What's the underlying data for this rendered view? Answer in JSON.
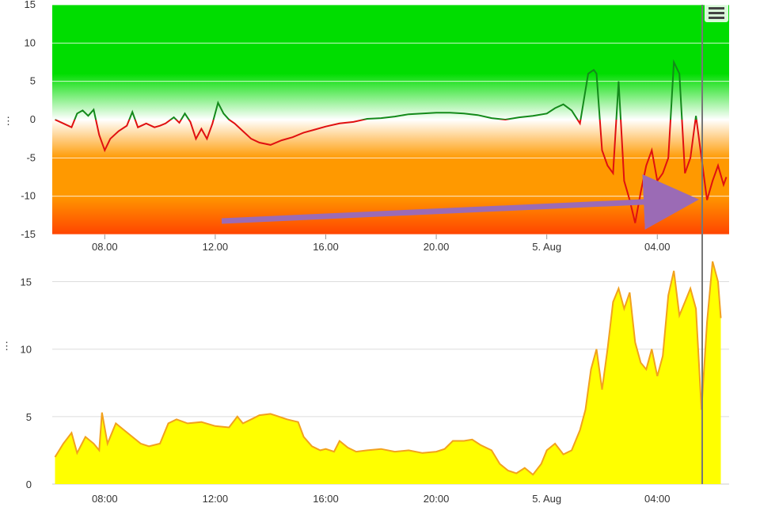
{
  "colors": {
    "zone_green": "#00dd00",
    "zone_orange": "#ff9900",
    "zone_deep_orange": "#ff4400",
    "line_positive": "#138a1a",
    "line_negative": "#e01010",
    "area_fill": "#ffff00",
    "area_stroke": "#f2a11d",
    "arrow": "#9b6bb5",
    "crosshair": "#777777"
  },
  "icons": {
    "menu": "hamburger-menu-icon"
  },
  "chart_data": [
    {
      "type": "line",
      "x_tick_labels": [
        "08.00",
        "12.00",
        "16.00",
        "20.00",
        "5. Aug",
        "04.00"
      ],
      "y_tick_labels": [
        "15",
        "10",
        "5",
        "0",
        "-5",
        "-10",
        "-15"
      ],
      "ylim": [
        -15,
        15
      ],
      "xlim_hours": [
        6.1,
        30.6
      ],
      "grid": true,
      "background_zones": "green above 0, white at 0, orange to red below 0",
      "series": [
        {
          "points": [
            [
              6.2,
              0
            ],
            [
              6.5,
              -0.5
            ],
            [
              6.8,
              -1
            ],
            [
              7,
              0.8
            ],
            [
              7.2,
              1.2
            ],
            [
              7.4,
              0.5
            ],
            [
              7.6,
              1.3
            ],
            [
              7.8,
              -2
            ],
            [
              8,
              -4
            ],
            [
              8.2,
              -2.5
            ],
            [
              8.5,
              -1.5
            ],
            [
              8.8,
              -0.8
            ],
            [
              9,
              1
            ],
            [
              9.2,
              -1
            ],
            [
              9.5,
              -0.5
            ],
            [
              9.8,
              -1
            ],
            [
              10,
              -0.8
            ],
            [
              10.2,
              -0.5
            ],
            [
              10.5,
              0.3
            ],
            [
              10.7,
              -0.4
            ],
            [
              10.9,
              0.8
            ],
            [
              11.1,
              -0.3
            ],
            [
              11.3,
              -2.5
            ],
            [
              11.5,
              -1.2
            ],
            [
              11.7,
              -2.5
            ],
            [
              11.9,
              -0.5
            ],
            [
              12.1,
              2.2
            ],
            [
              12.3,
              0.8
            ],
            [
              12.5,
              0
            ],
            [
              12.7,
              -0.5
            ],
            [
              13,
              -1.5
            ],
            [
              13.3,
              -2.5
            ],
            [
              13.6,
              -3
            ],
            [
              14,
              -3.3
            ],
            [
              14.4,
              -2.7
            ],
            [
              14.8,
              -2.3
            ],
            [
              15.2,
              -1.7
            ],
            [
              15.6,
              -1.3
            ],
            [
              16,
              -0.9
            ],
            [
              16.5,
              -0.5
            ],
            [
              17,
              -0.3
            ],
            [
              17.5,
              0.1
            ],
            [
              18,
              0.2
            ],
            [
              18.5,
              0.4
            ],
            [
              19,
              0.7
            ],
            [
              19.5,
              0.8
            ],
            [
              20,
              0.9
            ],
            [
              20.5,
              0.9
            ],
            [
              21,
              0.8
            ],
            [
              21.5,
              0.6
            ],
            [
              22,
              0.2
            ],
            [
              22.5,
              0
            ],
            [
              23,
              0.3
            ],
            [
              23.5,
              0.5
            ],
            [
              24,
              0.8
            ],
            [
              24.3,
              1.5
            ],
            [
              24.6,
              2
            ],
            [
              24.9,
              1.2
            ],
            [
              25.2,
              -0.5
            ],
            [
              25.5,
              6
            ],
            [
              25.7,
              6.5
            ],
            [
              25.8,
              6
            ],
            [
              26,
              -4
            ],
            [
              26.2,
              -6
            ],
            [
              26.4,
              -7
            ],
            [
              26.6,
              5
            ],
            [
              26.8,
              -8
            ],
            [
              27,
              -10.5
            ],
            [
              27.2,
              -13.5
            ],
            [
              27.4,
              -9.5
            ],
            [
              27.6,
              -6
            ],
            [
              27.8,
              -4
            ],
            [
              28,
              -8
            ],
            [
              28.2,
              -7
            ],
            [
              28.4,
              -5
            ],
            [
              28.6,
              7.5
            ],
            [
              28.8,
              6
            ],
            [
              29,
              -7
            ],
            [
              29.2,
              -5
            ],
            [
              29.4,
              0.5
            ],
            [
              29.6,
              -5
            ],
            [
              29.8,
              -10.5
            ],
            [
              30,
              -8
            ],
            [
              30.2,
              -6
            ],
            [
              30.4,
              -8.5
            ],
            [
              30.5,
              -7.5
            ]
          ]
        }
      ]
    },
    {
      "type": "area",
      "x_tick_labels": [
        "08:00",
        "12:00",
        "16:00",
        "20:00",
        "5. Aug",
        "04:00"
      ],
      "y_tick_labels": [
        "15",
        "10",
        "5",
        "0"
      ],
      "ylim": [
        0,
        16.5
      ],
      "xlim_hours": [
        6.1,
        30.6
      ],
      "grid": true,
      "series": [
        {
          "points": [
            [
              6.2,
              2
            ],
            [
              6.5,
              3
            ],
            [
              6.8,
              3.8
            ],
            [
              7,
              2.3
            ],
            [
              7.3,
              3.5
            ],
            [
              7.6,
              3
            ],
            [
              7.8,
              2.5
            ],
            [
              7.9,
              5.3
            ],
            [
              8.1,
              3
            ],
            [
              8.4,
              4.5
            ],
            [
              8.7,
              4
            ],
            [
              9,
              3.5
            ],
            [
              9.3,
              3
            ],
            [
              9.6,
              2.8
            ],
            [
              10,
              3
            ],
            [
              10.3,
              4.5
            ],
            [
              10.6,
              4.8
            ],
            [
              11,
              4.5
            ],
            [
              11.5,
              4.6
            ],
            [
              12,
              4.3
            ],
            [
              12.5,
              4.2
            ],
            [
              12.8,
              5
            ],
            [
              13,
              4.5
            ],
            [
              13.3,
              4.8
            ],
            [
              13.6,
              5.1
            ],
            [
              14,
              5.2
            ],
            [
              14.3,
              5
            ],
            [
              14.6,
              4.8
            ],
            [
              15,
              4.6
            ],
            [
              15.2,
              3.5
            ],
            [
              15.5,
              2.8
            ],
            [
              15.8,
              2.5
            ],
            [
              16,
              2.6
            ],
            [
              16.3,
              2.4
            ],
            [
              16.5,
              3.2
            ],
            [
              16.8,
              2.7
            ],
            [
              17.1,
              2.4
            ],
            [
              17.5,
              2.5
            ],
            [
              18,
              2.6
            ],
            [
              18.5,
              2.4
            ],
            [
              19,
              2.5
            ],
            [
              19.5,
              2.3
            ],
            [
              20,
              2.4
            ],
            [
              20.3,
              2.6
            ],
            [
              20.6,
              3.2
            ],
            [
              21,
              3.2
            ],
            [
              21.3,
              3.3
            ],
            [
              21.6,
              2.9
            ],
            [
              22,
              2.5
            ],
            [
              22.3,
              1.5
            ],
            [
              22.6,
              1
            ],
            [
              22.9,
              0.8
            ],
            [
              23.2,
              1.2
            ],
            [
              23.5,
              0.7
            ],
            [
              23.8,
              1.5
            ],
            [
              24,
              2.5
            ],
            [
              24.3,
              3
            ],
            [
              24.6,
              2.2
            ],
            [
              24.9,
              2.5
            ],
            [
              25.2,
              4
            ],
            [
              25.4,
              5.5
            ],
            [
              25.6,
              8.5
            ],
            [
              25.8,
              10
            ],
            [
              26,
              7
            ],
            [
              26.2,
              10
            ],
            [
              26.4,
              13.5
            ],
            [
              26.6,
              14.5
            ],
            [
              26.8,
              13
            ],
            [
              27,
              14.2
            ],
            [
              27.2,
              10.5
            ],
            [
              27.4,
              9
            ],
            [
              27.6,
              8.5
            ],
            [
              27.8,
              10
            ],
            [
              28,
              8
            ],
            [
              28.2,
              9.5
            ],
            [
              28.4,
              14
            ],
            [
              28.6,
              15.8
            ],
            [
              28.8,
              12.5
            ],
            [
              29,
              13.5
            ],
            [
              29.2,
              14.5
            ],
            [
              29.4,
              13
            ],
            [
              29.6,
              5.5
            ],
            [
              29.8,
              12
            ],
            [
              30,
              16.5
            ],
            [
              30.2,
              15
            ],
            [
              30.3,
              12.3
            ]
          ]
        }
      ]
    }
  ]
}
